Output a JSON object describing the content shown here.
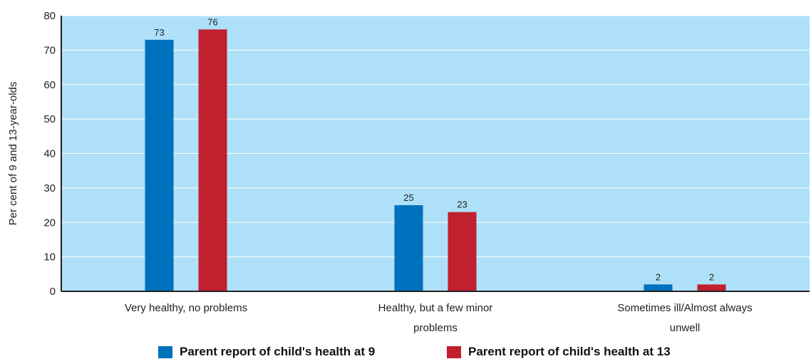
{
  "chart_data": {
    "type": "bar",
    "categories": [
      [
        "Very healthy, no problems"
      ],
      [
        "Healthy, but a few minor",
        "problems"
      ],
      [
        "Sometimes ill/Almost always",
        "unwell"
      ]
    ],
    "series": [
      {
        "name": "Parent report of child's health at 9",
        "values": [
          73,
          25,
          2
        ],
        "color": "#0071bc"
      },
      {
        "name": "Parent report of child's health at 13",
        "values": [
          76,
          23,
          2
        ],
        "color": "#c1202f"
      }
    ],
    "ylabel": "Per cent of 9 and 13-year-olds",
    "ylim": [
      0,
      80
    ],
    "yticks": [
      0,
      10,
      20,
      30,
      40,
      50,
      60,
      70,
      80
    ],
    "grid": true,
    "legend": "bottom",
    "background_color": "#aee0f9",
    "grid_color": "#ffffff"
  }
}
